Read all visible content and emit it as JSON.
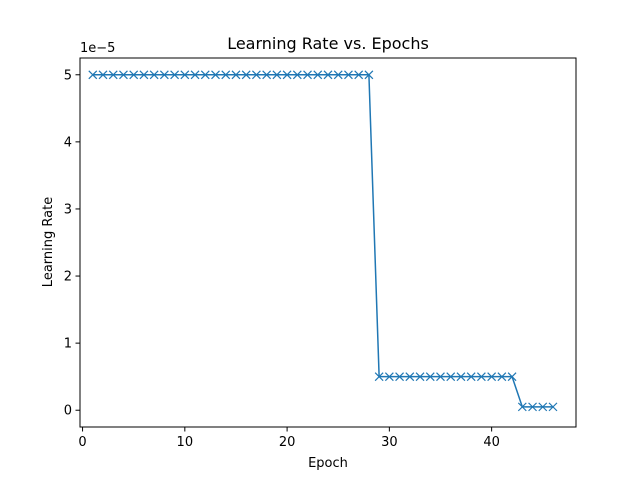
{
  "chart_data": {
    "type": "line",
    "title": "Learning Rate vs. Epochs",
    "xlabel": "Epoch",
    "ylabel": "Learning Rate",
    "y_scale_label": "1e−5",
    "xlim": [
      -0.25,
      48.25
    ],
    "ylim": [
      -0.25,
      5.25
    ],
    "y_multiplier": 1e-05,
    "x_ticks": [
      0,
      10,
      20,
      30,
      40
    ],
    "x_tick_labels": [
      "0",
      "10",
      "20",
      "30",
      "40"
    ],
    "y_ticks": [
      0,
      1,
      2,
      3,
      4,
      5
    ],
    "y_tick_labels": [
      "0",
      "1",
      "2",
      "3",
      "4",
      "5"
    ],
    "grid": false,
    "marker": "x",
    "series": [
      {
        "color": "#1f77b4",
        "x": [
          1,
          2,
          3,
          4,
          5,
          6,
          7,
          8,
          9,
          10,
          11,
          12,
          13,
          14,
          15,
          16,
          17,
          18,
          19,
          20,
          21,
          22,
          23,
          24,
          25,
          26,
          27,
          28,
          29,
          30,
          31,
          32,
          33,
          34,
          35,
          36,
          37,
          38,
          39,
          40,
          41,
          42,
          43,
          44,
          45,
          46
        ],
        "values": [
          5,
          5,
          5,
          5,
          5,
          5,
          5,
          5,
          5,
          5,
          5,
          5,
          5,
          5,
          5,
          5,
          5,
          5,
          5,
          5,
          5,
          5,
          5,
          5,
          5,
          5,
          5,
          5,
          0.5,
          0.5,
          0.5,
          0.5,
          0.5,
          0.5,
          0.5,
          0.5,
          0.5,
          0.5,
          0.5,
          0.5,
          0.5,
          0.5,
          0.05,
          0.05,
          0.05,
          0.05
        ]
      }
    ]
  }
}
